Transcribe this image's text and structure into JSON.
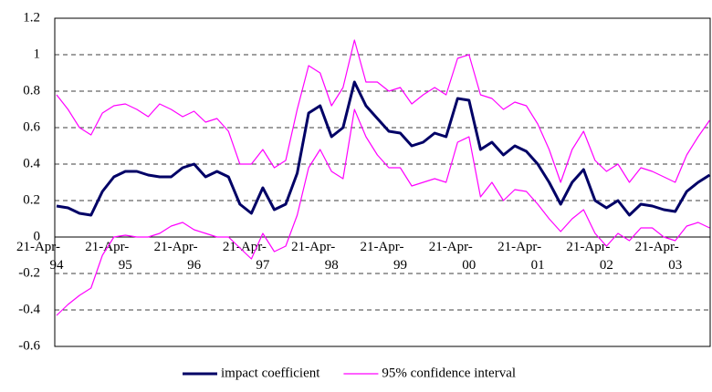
{
  "chart_data": {
    "type": "line",
    "categories": [
      "21-Apr-94",
      null,
      null,
      null,
      null,
      null,
      "21-Apr-95",
      null,
      null,
      null,
      null,
      null,
      "21-Apr-96",
      null,
      null,
      null,
      null,
      null,
      "21-Apr-97",
      null,
      null,
      null,
      null,
      null,
      "21-Apr-98",
      null,
      null,
      null,
      null,
      null,
      "21-Apr-99",
      null,
      null,
      null,
      null,
      null,
      "21-Apr-00",
      null,
      null,
      null,
      null,
      null,
      "21-Apr-01",
      null,
      null,
      null,
      null,
      null,
      "21-Apr-02",
      null,
      null,
      null,
      null,
      null,
      "21-Apr-03",
      null,
      null,
      null
    ],
    "series": [
      {
        "name": "impact coefficient",
        "color": "#000066",
        "values": [
          0.17,
          0.16,
          0.13,
          0.12,
          0.25,
          0.33,
          0.36,
          0.36,
          0.34,
          0.33,
          0.33,
          0.38,
          0.4,
          0.33,
          0.36,
          0.33,
          0.18,
          0.13,
          0.27,
          0.15,
          0.18,
          0.35,
          0.68,
          0.72,
          0.55,
          0.6,
          0.85,
          0.72,
          0.65,
          0.58,
          0.57,
          0.5,
          0.52,
          0.57,
          0.55,
          0.76,
          0.75,
          0.48,
          0.52,
          0.45,
          0.5,
          0.47,
          0.4,
          0.3,
          0.18,
          0.3,
          0.37,
          0.2,
          0.16,
          0.2,
          0.12,
          0.18,
          0.17,
          0.15,
          0.14,
          0.25,
          0.3,
          0.34
        ]
      },
      {
        "name": "95% confidence interval",
        "color": "#ff00ff",
        "upper": [
          0.78,
          0.7,
          0.6,
          0.56,
          0.68,
          0.72,
          0.73,
          0.7,
          0.66,
          0.73,
          0.7,
          0.66,
          0.69,
          0.63,
          0.65,
          0.58,
          0.4,
          0.4,
          0.48,
          0.38,
          0.42,
          0.7,
          0.94,
          0.9,
          0.72,
          0.82,
          1.08,
          0.85,
          0.85,
          0.8,
          0.82,
          0.73,
          0.78,
          0.82,
          0.78,
          0.98,
          1.0,
          0.78,
          0.76,
          0.7,
          0.74,
          0.72,
          0.62,
          0.48,
          0.3,
          0.48,
          0.58,
          0.42,
          0.36,
          0.4,
          0.3,
          0.38,
          0.36,
          0.33,
          0.3,
          0.45,
          0.55,
          0.64
        ],
        "lower": [
          -0.43,
          -0.37,
          -0.32,
          -0.28,
          -0.1,
          0.0,
          0.01,
          0.0,
          0.0,
          0.02,
          0.06,
          0.08,
          0.04,
          0.02,
          0.0,
          0.0,
          -0.06,
          -0.12,
          0.02,
          -0.08,
          -0.05,
          0.12,
          0.38,
          0.48,
          0.36,
          0.32,
          0.7,
          0.55,
          0.45,
          0.38,
          0.38,
          0.28,
          0.3,
          0.32,
          0.3,
          0.52,
          0.55,
          0.22,
          0.3,
          0.2,
          0.26,
          0.25,
          0.18,
          0.1,
          0.03,
          0.1,
          0.15,
          0.02,
          -0.05,
          0.02,
          -0.02,
          0.05,
          0.05,
          0.0,
          -0.02,
          0.06,
          0.08,
          0.05
        ]
      }
    ],
    "ylim": [
      -0.6,
      1.2
    ],
    "yticks": [
      -0.6,
      -0.4,
      -0.2,
      0,
      0.2,
      0.4,
      0.6,
      0.8,
      1,
      1.2
    ],
    "grid": true,
    "legend": "bottom"
  }
}
